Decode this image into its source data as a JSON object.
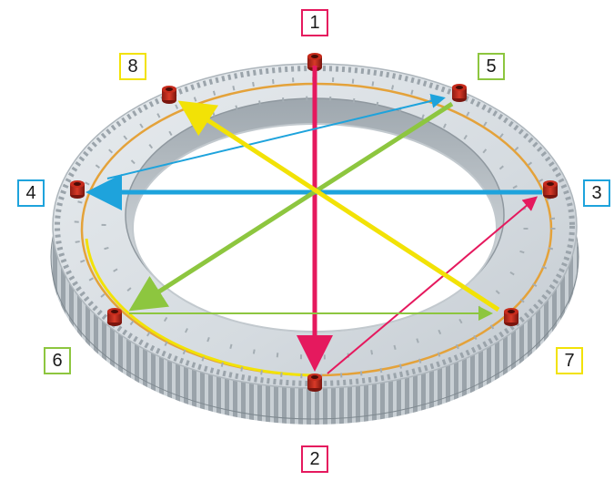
{
  "colors": {
    "magenta": "#e5195e",
    "blue": "#1ea3dc",
    "green": "#8dc63f",
    "yellow": "#f2e206",
    "ring": "#d7dde2",
    "bolt": "#c62b1c"
  },
  "labels": [
    {
      "id": "1",
      "text": "1",
      "color": "#e5195e"
    },
    {
      "id": "2",
      "text": "2",
      "color": "#e5195e"
    },
    {
      "id": "3",
      "text": "3",
      "color": "#1ea3dc"
    },
    {
      "id": "4",
      "text": "4",
      "color": "#1ea3dc"
    },
    {
      "id": "5",
      "text": "5",
      "color": "#8dc63f"
    },
    {
      "id": "6",
      "text": "6",
      "color": "#8dc63f"
    },
    {
      "id": "7",
      "text": "7",
      "color": "#f2e206"
    },
    {
      "id": "8",
      "text": "8",
      "color": "#f2e206"
    }
  ],
  "bolt_icon": "bolt-icon",
  "ring_icon": "slewing-ring-gear-icon"
}
